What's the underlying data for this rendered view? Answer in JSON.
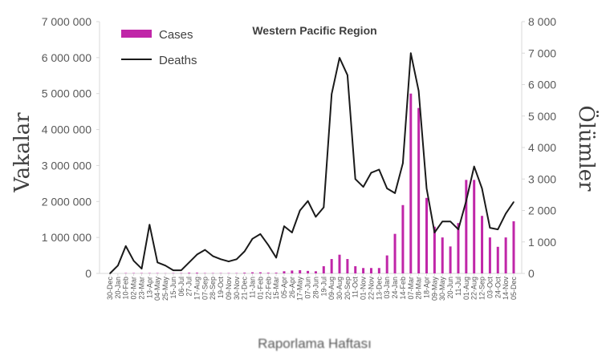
{
  "chart_data": {
    "type": "bar+line",
    "title": "Western Pacific Region",
    "xlabel": "Raporlama Haftası",
    "ylabel": "Vakalar",
    "y2label": "Ölümler",
    "ylim": [
      0,
      7000000
    ],
    "y2lim": [
      0,
      8000
    ],
    "yticks": [
      "0",
      "1 000 000",
      "2 000 000",
      "3 000 000",
      "4 000 000",
      "5 000 000",
      "6 000 000",
      "7 000 000"
    ],
    "y2ticks": [
      "0",
      "1 000",
      "2 000",
      "3 000",
      "4 000",
      "5 000",
      "6 000",
      "7 000",
      "8 000"
    ],
    "legend_position": "top-left",
    "categories": [
      "30-Dec",
      "20-Jan",
      "10-Feb",
      "02-Mar",
      "23-Mar",
      "13-Apr",
      "04-May",
      "25-May",
      "15-Jun",
      "06-Jul",
      "27-Jul",
      "17-Aug",
      "07-Sep",
      "28-Sep",
      "19-Oct",
      "09-Nov",
      "30-Nov",
      "21-Dec",
      "11-Jan",
      "01-Feb",
      "22-Feb",
      "15-Mar",
      "05-Apr",
      "26-Apr",
      "17-May",
      "07-Jun",
      "28-Jun",
      "19-Jul",
      "09-Aug",
      "30-Aug",
      "20-Sep",
      "11-Oct",
      "01-Nov",
      "22-Nov",
      "13-Dec",
      "03-Jan",
      "24-Jan",
      "14-Feb",
      "07-Mar",
      "28-Mar",
      "18-Apr",
      "09-May",
      "30-May",
      "20-Jun",
      "11-Jul",
      "01-Aug",
      "22-Aug",
      "12-Sep",
      "03-Oct",
      "24-Oct",
      "14-Nov",
      "05-Dec"
    ],
    "series": [
      {
        "name": "Cases",
        "type": "bar",
        "axis": "left",
        "color": "#C026A8",
        "values": [
          0,
          0,
          10000,
          10000,
          10000,
          10000,
          10000,
          5000,
          10000,
          10000,
          20000,
          20000,
          10000,
          10000,
          10000,
          10000,
          10000,
          20000,
          30000,
          30000,
          20000,
          20000,
          60000,
          80000,
          90000,
          70000,
          60000,
          200000,
          400000,
          520000,
          400000,
          200000,
          150000,
          150000,
          150000,
          500000,
          1100000,
          1900000,
          5000000,
          4600000,
          2100000,
          1300000,
          1000000,
          750000,
          1400000,
          2600000,
          2600000,
          1600000,
          1000000,
          740000,
          1000000,
          1450000
        ]
      },
      {
        "name": "Deaths",
        "type": "line",
        "axis": "right",
        "color": "#1a1a1a",
        "values": [
          0,
          250,
          870,
          400,
          150,
          1550,
          350,
          250,
          100,
          100,
          350,
          600,
          750,
          550,
          450,
          380,
          450,
          700,
          1100,
          1250,
          900,
          500,
          1500,
          1300,
          2000,
          2300,
          1800,
          2100,
          5700,
          6850,
          6300,
          3000,
          2750,
          3200,
          3300,
          2700,
          2550,
          3500,
          7000,
          5800,
          2700,
          1300,
          1650,
          1650,
          1400,
          2300,
          3400,
          2700,
          1450,
          1400,
          1900,
          2270
        ]
      }
    ]
  }
}
